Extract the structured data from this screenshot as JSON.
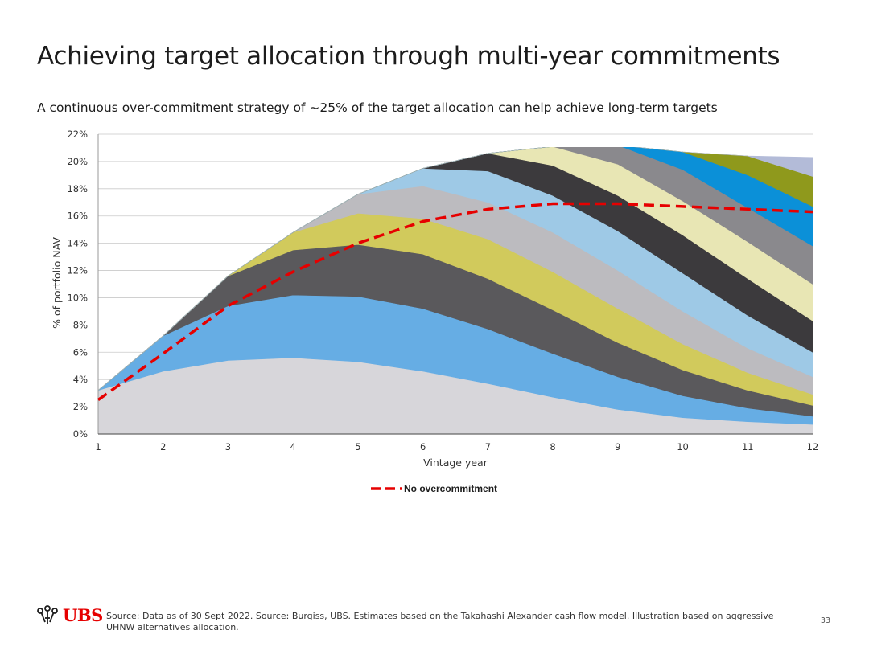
{
  "page": {
    "title": "Achieving target allocation through multi-year commitments",
    "subtitle": "A continuous over-commitment strategy of ~25% of the target allocation can help achieve long-term targets",
    "source": "Source: Data as of 30 Sept 2022. Source: Burgiss, UBS. Estimates based on the Takahashi Alexander cash flow model. Illustration based on aggressive UHNW alternatives allocation.",
    "page_number": "33",
    "brand": "UBS",
    "brand_color": "#e60000"
  },
  "chart_data": {
    "type": "area",
    "stacked": true,
    "title": "",
    "xlabel": "Vintage year",
    "ylabel": "% of portfolio NAV",
    "x": [
      1,
      2,
      3,
      4,
      5,
      6,
      7,
      8,
      9,
      10,
      11,
      12
    ],
    "yticks": [
      "0%",
      "2%",
      "4%",
      "6%",
      "8%",
      "10%",
      "12%",
      "14%",
      "16%",
      "18%",
      "20%",
      "22%"
    ],
    "ylim": [
      0,
      22
    ],
    "grid": true,
    "legend_position": "bottom-center",
    "series": [
      {
        "color": "#d7d6da",
        "values": [
          3.2,
          4.6,
          5.4,
          5.6,
          5.3,
          4.6,
          3.7,
          2.7,
          1.8,
          1.2,
          0.9,
          0.7
        ]
      },
      {
        "color": "#66ade4",
        "values": [
          0,
          2.6,
          4.0,
          4.6,
          4.8,
          4.6,
          4.0,
          3.2,
          2.4,
          1.6,
          1.0,
          0.6
        ]
      },
      {
        "color": "#5a595c",
        "values": [
          0,
          0,
          2.2,
          3.3,
          3.8,
          4.0,
          3.7,
          3.2,
          2.5,
          1.9,
          1.3,
          0.8
        ]
      },
      {
        "color": "#d1ca5c",
        "values": [
          0,
          0,
          0,
          1.3,
          2.3,
          2.6,
          2.9,
          2.8,
          2.5,
          1.9,
          1.3,
          0.8
        ]
      },
      {
        "color": "#bcbbbf",
        "values": [
          0,
          0,
          0,
          0,
          1.4,
          2.4,
          2.7,
          2.9,
          2.8,
          2.4,
          1.8,
          1.3
        ]
      },
      {
        "color": "#9ec9e6",
        "values": [
          0,
          0,
          0,
          0,
          0,
          1.3,
          2.3,
          2.7,
          2.9,
          2.8,
          2.4,
          1.8
        ]
      },
      {
        "color": "#3c3a3d",
        "values": [
          0,
          0,
          0,
          0,
          0,
          0,
          1.3,
          2.2,
          2.6,
          2.8,
          2.7,
          2.3
        ]
      },
      {
        "color": "#e8e6b4",
        "values": [
          0,
          0,
          0,
          0,
          0,
          0,
          0,
          1.4,
          2.3,
          2.5,
          2.7,
          2.7
        ]
      },
      {
        "color": "#8a898d",
        "values": [
          0,
          0,
          0,
          0,
          0,
          0,
          0,
          0,
          1.4,
          2.3,
          2.5,
          2.8
        ]
      },
      {
        "color": "#0b90d8",
        "values": [
          0,
          0,
          0,
          0,
          0,
          0,
          0,
          0,
          0,
          1.3,
          2.4,
          2.9
        ]
      },
      {
        "color": "#8f991c",
        "values": [
          0,
          0,
          0,
          0,
          0,
          0,
          0,
          0,
          0,
          0,
          1.4,
          2.2
        ]
      },
      {
        "color": "#b3bbd8",
        "values": [
          0,
          0,
          0,
          0,
          0,
          0,
          0,
          0,
          0,
          0,
          0,
          1.4
        ]
      }
    ],
    "line": {
      "name": "No overcommitment",
      "color": "#e60000",
      "values": [
        2.5,
        5.9,
        9.4,
        11.9,
        14.0,
        15.6,
        16.5,
        16.9,
        16.9,
        16.7,
        16.5,
        16.3
      ]
    }
  }
}
